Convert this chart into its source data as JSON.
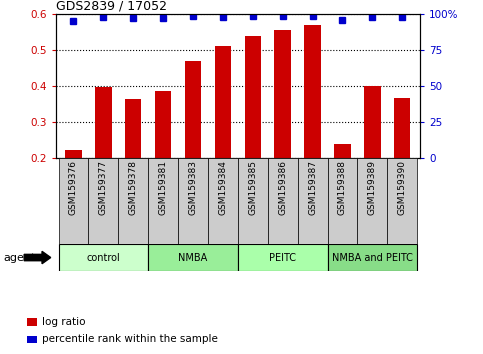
{
  "title": "GDS2839 / 17052",
  "samples": [
    "GSM159376",
    "GSM159377",
    "GSM159378",
    "GSM159381",
    "GSM159383",
    "GSM159384",
    "GSM159385",
    "GSM159386",
    "GSM159387",
    "GSM159388",
    "GSM159389",
    "GSM159390"
  ],
  "log_ratio": [
    0.222,
    0.398,
    0.362,
    0.385,
    0.47,
    0.51,
    0.538,
    0.555,
    0.57,
    0.238,
    0.4,
    0.365
  ],
  "percentile": [
    95,
    98,
    97,
    97,
    99,
    98,
    99,
    99,
    99,
    96,
    98,
    98
  ],
  "bar_color": "#CC0000",
  "dot_color": "#0000CC",
  "ylim_left": [
    0.2,
    0.6
  ],
  "ylim_right": [
    0,
    100
  ],
  "yticks_left": [
    0.2,
    0.3,
    0.4,
    0.5,
    0.6
  ],
  "yticks_right": [
    0,
    25,
    50,
    75,
    100
  ],
  "ytick_right_labels": [
    "0",
    "25",
    "50",
    "75",
    "100%"
  ],
  "groups": [
    {
      "label": "control",
      "start": 0,
      "end": 3,
      "color": "#CCFFCC"
    },
    {
      "label": "NMBA",
      "start": 3,
      "end": 6,
      "color": "#99EE99"
    },
    {
      "label": "PEITC",
      "start": 6,
      "end": 9,
      "color": "#AAFFAA"
    },
    {
      "label": "NMBA and PEITC",
      "start": 9,
      "end": 12,
      "color": "#88DD88"
    }
  ],
  "legend_red_label": "log ratio",
  "legend_blue_label": "percentile rank within the sample",
  "agent_label": "agent",
  "background_color": "#FFFFFF",
  "tick_area_color": "#CCCCCC",
  "bar_width": 0.55
}
